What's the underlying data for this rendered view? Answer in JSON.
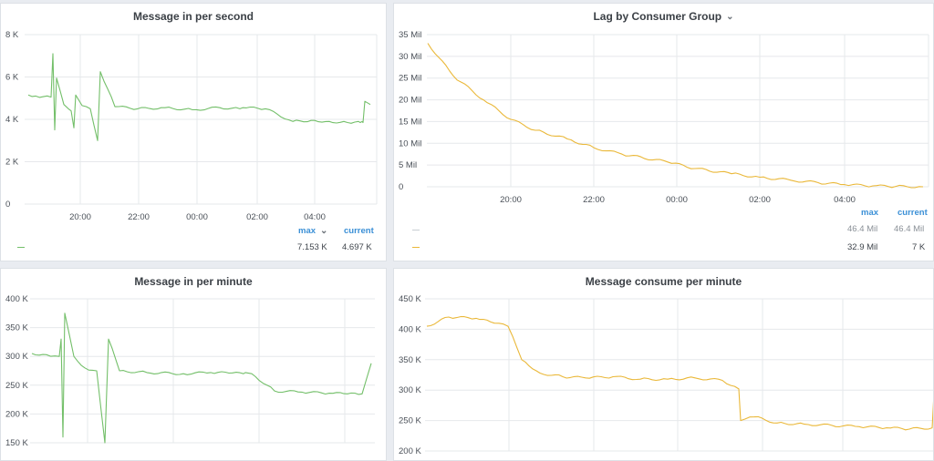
{
  "panels": [
    {
      "title": "Message in per second"
    },
    {
      "title": "Lag by Consumer Group"
    },
    {
      "title": "Message in per minute"
    },
    {
      "title": "Message consume per minute"
    }
  ],
  "colors": {
    "green": "#73bf69",
    "yellow": "#eab839",
    "grid": "#e6e8eb"
  },
  "legend1": {
    "max_label": "max",
    "current_label": "current",
    "rows": [
      {
        "color": "#73bf69",
        "max": "7.153 K",
        "current": "4.697 K"
      }
    ]
  },
  "legend2": {
    "max_label": "max",
    "current_label": "current",
    "rows": [
      {
        "color": "#c9ced3",
        "max": "46.4 Mil",
        "current": "46.4 Mil"
      },
      {
        "color": "#eab839",
        "max": "32.9 Mil",
        "current": "7 K"
      }
    ]
  },
  "chart_data": [
    {
      "type": "line",
      "title": "Message in per second",
      "yticks": [
        "0",
        "2 K",
        "4 K",
        "6 K",
        "8 K"
      ],
      "xticks": [
        "20:00",
        "22:00",
        "00:00",
        "02:00",
        "04:00"
      ],
      "ylim": [
        0,
        8000
      ],
      "series": [
        {
          "color": "#73bf69",
          "x": [
            "18:55",
            "19:10",
            "19:35",
            "19:45",
            "19:50",
            "20:00",
            "20:20",
            "20:30",
            "20:35",
            "20:40",
            "20:45",
            "21:00",
            "21:20",
            "21:40",
            "22:00",
            "22:30",
            "23:00",
            "23:30",
            "00:00",
            "00:30",
            "01:00",
            "01:30",
            "01:40",
            "02:00",
            "02:30",
            "03:00",
            "03:30",
            "04:00",
            "04:30",
            "05:00",
            "05:10",
            "05:20",
            "05:30"
          ],
          "y": [
            5150,
            5100,
            5050,
            7100,
            3500,
            5950,
            4700,
            4500,
            4400,
            3600,
            5150,
            4650,
            4500,
            3000,
            6250,
            4600,
            4500,
            4550,
            4450,
            4550,
            4500,
            4550,
            4500,
            3900,
            3950,
            3900,
            3850,
            3900,
            3850,
            3900,
            3850,
            4850,
            4700
          ]
        }
      ],
      "legend": {
        "max": "7.153 K",
        "current": "4.697 K"
      }
    },
    {
      "type": "line",
      "title": "Lag by Consumer Group",
      "yticks": [
        "0",
        "5 Mil",
        "10 Mil",
        "15 Mil",
        "20 Mil",
        "25 Mil",
        "30 Mil",
        "35 Mil"
      ],
      "xticks": [
        "20:00",
        "22:00",
        "00:00",
        "02:00",
        "04:00"
      ],
      "ylim": [
        0,
        35000000
      ],
      "series": [
        {
          "color": "#eab839",
          "x": [
            "18:40",
            "19:20",
            "20:00",
            "20:40",
            "21:20",
            "22:00",
            "22:40",
            "23:20",
            "00:00",
            "00:40",
            "01:20",
            "02:00",
            "02:40",
            "03:20",
            "04:00",
            "04:40",
            "05:10",
            "05:40"
          ],
          "y": [
            33000000,
            25500000,
            20000000,
            15500000,
            13000000,
            11000000,
            9000000,
            7500000,
            5700000,
            4200000,
            3000000,
            2200000,
            1500000,
            950000,
            500000,
            200000,
            80000,
            7000
          ]
        }
      ],
      "legend": {
        "max": "32.9 Mil",
        "current": "7 K"
      }
    },
    {
      "type": "line",
      "title": "Message in per minute",
      "yticks": [
        "150 K",
        "200 K",
        "250 K",
        "300 K",
        "350 K",
        "400 K"
      ],
      "ylim": [
        150000,
        400000
      ],
      "series": [
        {
          "color": "#73bf69",
          "x": [
            "t0",
            "t1",
            "t2",
            "t3",
            "t4",
            "t5",
            "t6",
            "t7",
            "t8",
            "t9",
            "t10",
            "t11",
            "t12",
            "t13",
            "t14",
            "t15",
            "t16",
            "t17",
            "t18",
            "t19",
            "t20",
            "t21",
            "t22",
            "t23",
            "t24",
            "t25"
          ],
          "y": [
            305000,
            303000,
            300000,
            330000,
            160000,
            375000,
            300000,
            280000,
            275000,
            150000,
            330000,
            275000,
            272000,
            270000,
            272000,
            271000,
            270000,
            272000,
            270000,
            240000,
            238000,
            236000,
            235000,
            234000,
            235000,
            288000
          ]
        }
      ]
    },
    {
      "type": "line",
      "title": "Message consume per minute",
      "yticks": [
        "200 K",
        "250 K",
        "300 K",
        "350 K",
        "400 K",
        "450 K"
      ],
      "ylim": [
        200000,
        450000
      ],
      "series": [
        {
          "color": "#eab839",
          "x": [
            "t0",
            "t1",
            "t2",
            "t3",
            "t4",
            "t5",
            "t6",
            "t7",
            "t8",
            "t9",
            "t10",
            "t11",
            "t12",
            "t13",
            "t14",
            "t15",
            "t16",
            "t17",
            "t18",
            "t19",
            "t20",
            "t21",
            "t22",
            "t23",
            "t24"
          ],
          "y": [
            405000,
            420000,
            418000,
            410000,
            405000,
            350000,
            328000,
            322000,
            320000,
            322000,
            318000,
            318000,
            320000,
            316000,
            302000,
            250000,
            256000,
            246000,
            244000,
            242000,
            240000,
            238000,
            236000,
            238000,
            295000
          ]
        }
      ]
    }
  ]
}
